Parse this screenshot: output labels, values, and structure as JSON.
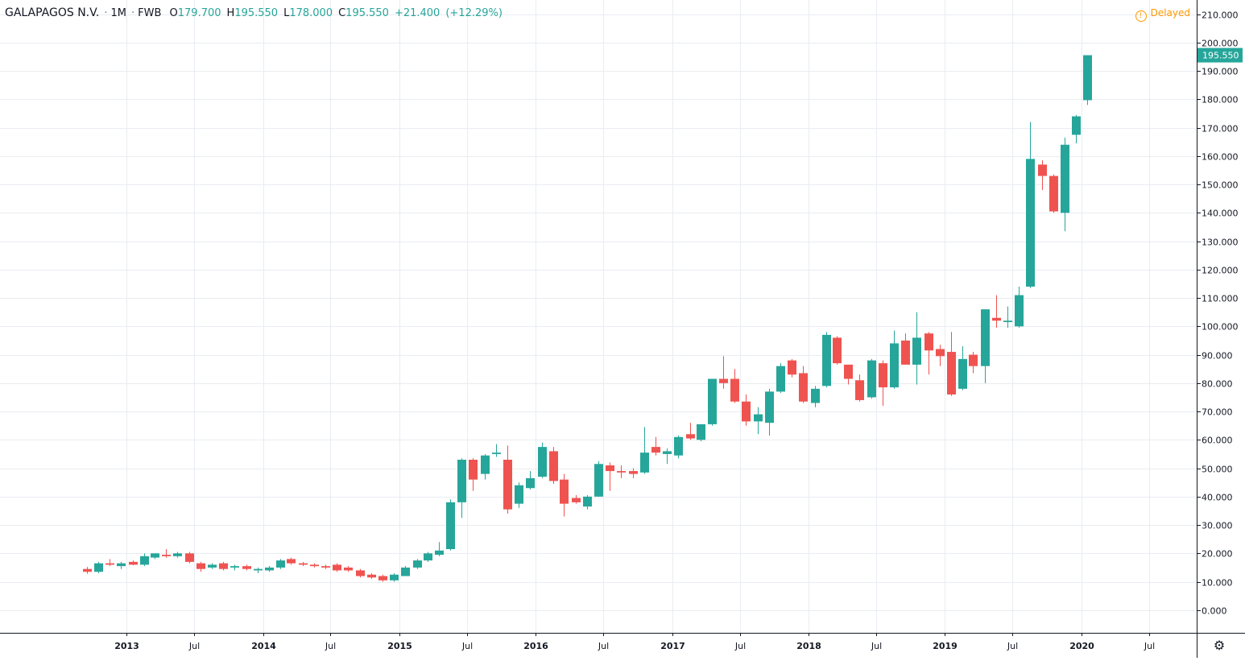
{
  "header": {
    "symbol": "GALAPAGOS N.V.",
    "interval": "1M",
    "exchange": "FWB",
    "open_label": "O",
    "open": "179.700",
    "high_label": "H",
    "high": "195.550",
    "low_label": "L",
    "low": "178.000",
    "close_label": "C",
    "close": "195.550",
    "change": "+21.400",
    "change_pct": "(+12.29%)"
  },
  "status": {
    "delayed_label": "Delayed"
  },
  "last_price_label": "195.550",
  "colors": {
    "up": "#26a69a",
    "down": "#ef5350",
    "grid": "#e9ecf1",
    "axis_text": "#131722",
    "delayed": "#ff9800"
  },
  "chart_data": {
    "type": "candlestick",
    "ylim": [
      -8,
      215
    ],
    "xlim": [
      "2012-01-28",
      "2020-11-05"
    ],
    "y_ticks": [
      "0.000",
      "10.000",
      "20.000",
      "30.000",
      "40.000",
      "50.000",
      "60.000",
      "70.000",
      "80.000",
      "90.000",
      "100.000",
      "110.000",
      "120.000",
      "130.000",
      "140.000",
      "150.000",
      "160.000",
      "170.000",
      "180.000",
      "190.000",
      "200.000",
      "210.000"
    ],
    "x_ticks": [
      {
        "label": "2013",
        "date": "2013-01"
      },
      {
        "label": "Jul",
        "date": "2013-07"
      },
      {
        "label": "2014",
        "date": "2014-01"
      },
      {
        "label": "Jul",
        "date": "2014-07"
      },
      {
        "label": "2015",
        "date": "2015-01"
      },
      {
        "label": "Jul",
        "date": "2015-07"
      },
      {
        "label": "2016",
        "date": "2016-01"
      },
      {
        "label": "Jul",
        "date": "2016-07"
      },
      {
        "label": "2017",
        "date": "2017-01"
      },
      {
        "label": "Jul",
        "date": "2017-07"
      },
      {
        "label": "2018",
        "date": "2018-01"
      },
      {
        "label": "Jul",
        "date": "2018-07"
      },
      {
        "label": "2019",
        "date": "2019-01"
      },
      {
        "label": "Jul",
        "date": "2019-07"
      },
      {
        "label": "2020",
        "date": "2020-01"
      },
      {
        "label": "Jul",
        "date": "2020-07"
      }
    ],
    "candles": [
      {
        "d": "2012-09",
        "o": 14.5,
        "h": 15.2,
        "l": 12.8,
        "c": 13.5
      },
      {
        "d": "2012-10",
        "o": 13.5,
        "h": 17.0,
        "l": 13.0,
        "c": 16.5
      },
      {
        "d": "2012-11",
        "o": 16.5,
        "h": 18.0,
        "l": 15.5,
        "c": 16.0
      },
      {
        "d": "2012-12",
        "o": 15.5,
        "h": 17.0,
        "l": 14.5,
        "c": 16.5
      },
      {
        "d": "2013-01",
        "o": 17.0,
        "h": 17.5,
        "l": 15.8,
        "c": 16.0
      },
      {
        "d": "2013-02",
        "o": 16.0,
        "h": 20.0,
        "l": 15.5,
        "c": 19.0
      },
      {
        "d": "2013-03",
        "o": 18.5,
        "h": 20.0,
        "l": 18.0,
        "c": 20.0
      },
      {
        "d": "2013-04",
        "o": 19.5,
        "h": 21.5,
        "l": 18.5,
        "c": 19.0
      },
      {
        "d": "2013-05",
        "o": 19.0,
        "h": 20.5,
        "l": 18.5,
        "c": 20.0
      },
      {
        "d": "2013-06",
        "o": 20.0,
        "h": 20.5,
        "l": 16.5,
        "c": 17.0
      },
      {
        "d": "2013-07",
        "o": 16.5,
        "h": 17.0,
        "l": 13.5,
        "c": 14.5
      },
      {
        "d": "2013-08",
        "o": 15.0,
        "h": 16.5,
        "l": 14.5,
        "c": 16.0
      },
      {
        "d": "2013-09",
        "o": 16.5,
        "h": 17.0,
        "l": 14.0,
        "c": 14.5
      },
      {
        "d": "2013-10",
        "o": 15.0,
        "h": 16.0,
        "l": 14.0,
        "c": 15.5
      },
      {
        "d": "2013-11",
        "o": 15.5,
        "h": 16.0,
        "l": 14.0,
        "c": 14.5
      },
      {
        "d": "2013-12",
        "o": 14.0,
        "h": 15.0,
        "l": 13.0,
        "c": 14.5
      },
      {
        "d": "2014-01",
        "o": 14.0,
        "h": 15.5,
        "l": 13.5,
        "c": 15.0
      },
      {
        "d": "2014-02",
        "o": 15.0,
        "h": 18.0,
        "l": 14.5,
        "c": 17.5
      },
      {
        "d": "2014-03",
        "o": 18.0,
        "h": 18.5,
        "l": 16.0,
        "c": 16.5
      },
      {
        "d": "2014-04",
        "o": 16.5,
        "h": 17.0,
        "l": 15.5,
        "c": 16.0
      },
      {
        "d": "2014-05",
        "o": 16.0,
        "h": 16.5,
        "l": 15.0,
        "c": 15.5
      },
      {
        "d": "2014-06",
        "o": 15.5,
        "h": 16.0,
        "l": 14.5,
        "c": 15.0
      },
      {
        "d": "2014-07",
        "o": 16.0,
        "h": 16.5,
        "l": 13.5,
        "c": 14.0
      },
      {
        "d": "2014-08",
        "o": 15.0,
        "h": 15.5,
        "l": 13.5,
        "c": 14.0
      },
      {
        "d": "2014-09",
        "o": 14.0,
        "h": 14.5,
        "l": 11.5,
        "c": 12.0
      },
      {
        "d": "2014-10",
        "o": 12.5,
        "h": 13.0,
        "l": 11.0,
        "c": 11.5
      },
      {
        "d": "2014-11",
        "o": 12.0,
        "h": 12.5,
        "l": 10.0,
        "c": 10.5
      },
      {
        "d": "2014-12",
        "o": 10.5,
        "h": 13.0,
        "l": 10.0,
        "c": 12.5
      },
      {
        "d": "2015-01",
        "o": 12.0,
        "h": 15.5,
        "l": 12.0,
        "c": 15.0
      },
      {
        "d": "2015-02",
        "o": 15.0,
        "h": 18.0,
        "l": 14.5,
        "c": 17.5
      },
      {
        "d": "2015-03",
        "o": 17.5,
        "h": 20.5,
        "l": 17.0,
        "c": 20.0
      },
      {
        "d": "2015-04",
        "o": 19.5,
        "h": 24.0,
        "l": 19.0,
        "c": 21.0
      },
      {
        "d": "2015-05",
        "o": 21.5,
        "h": 39.0,
        "l": 21.0,
        "c": 38.0
      },
      {
        "d": "2015-06",
        "o": 38.0,
        "h": 53.5,
        "l": 32.5,
        "c": 53.0
      },
      {
        "d": "2015-07",
        "o": 53.0,
        "h": 53.5,
        "l": 42.0,
        "c": 46.0
      },
      {
        "d": "2015-08",
        "o": 48.0,
        "h": 55.0,
        "l": 46.0,
        "c": 54.5
      },
      {
        "d": "2015-09",
        "o": 55.0,
        "h": 58.5,
        "l": 54.0,
        "c": 55.5
      },
      {
        "d": "2015-10",
        "o": 53.0,
        "h": 58.0,
        "l": 34.0,
        "c": 35.5
      },
      {
        "d": "2015-11",
        "o": 37.5,
        "h": 45.0,
        "l": 36.0,
        "c": 44.0
      },
      {
        "d": "2015-12",
        "o": 43.0,
        "h": 49.0,
        "l": 42.5,
        "c": 46.5
      },
      {
        "d": "2016-01",
        "o": 47.0,
        "h": 59.0,
        "l": 46.5,
        "c": 57.5
      },
      {
        "d": "2016-02",
        "o": 56.0,
        "h": 57.5,
        "l": 44.5,
        "c": 45.5
      },
      {
        "d": "2016-03",
        "o": 46.0,
        "h": 48.0,
        "l": 33.0,
        "c": 37.5
      },
      {
        "d": "2016-04",
        "o": 39.5,
        "h": 40.5,
        "l": 37.5,
        "c": 38.0
      },
      {
        "d": "2016-05",
        "o": 36.5,
        "h": 40.5,
        "l": 35.5,
        "c": 40.0
      },
      {
        "d": "2016-06",
        "o": 40.0,
        "h": 52.5,
        "l": 40.0,
        "c": 51.5
      },
      {
        "d": "2016-07",
        "o": 51.0,
        "h": 52.0,
        "l": 42.0,
        "c": 49.0
      },
      {
        "d": "2016-08",
        "o": 49.0,
        "h": 51.0,
        "l": 46.5,
        "c": 48.5
      },
      {
        "d": "2016-09",
        "o": 49.0,
        "h": 50.0,
        "l": 46.5,
        "c": 48.0
      },
      {
        "d": "2016-10",
        "o": 48.5,
        "h": 64.5,
        "l": 48.0,
        "c": 55.5
      },
      {
        "d": "2016-11",
        "o": 57.5,
        "h": 61.0,
        "l": 54.5,
        "c": 55.5
      },
      {
        "d": "2016-12",
        "o": 55.0,
        "h": 57.0,
        "l": 51.5,
        "c": 56.0
      },
      {
        "d": "2017-01",
        "o": 54.5,
        "h": 61.5,
        "l": 53.5,
        "c": 61.0
      },
      {
        "d": "2017-02",
        "o": 62.0,
        "h": 66.0,
        "l": 60.0,
        "c": 60.5
      },
      {
        "d": "2017-03",
        "o": 60.0,
        "h": 65.5,
        "l": 59.5,
        "c": 65.5
      },
      {
        "d": "2017-04",
        "o": 65.5,
        "h": 81.5,
        "l": 65.0,
        "c": 81.5
      },
      {
        "d": "2017-05",
        "o": 81.5,
        "h": 89.5,
        "l": 78.0,
        "c": 80.0
      },
      {
        "d": "2017-06",
        "o": 81.5,
        "h": 85.0,
        "l": 73.0,
        "c": 73.5
      },
      {
        "d": "2017-07",
        "o": 73.5,
        "h": 76.0,
        "l": 65.0,
        "c": 66.5
      },
      {
        "d": "2017-08",
        "o": 66.5,
        "h": 71.5,
        "l": 62.0,
        "c": 69.0
      },
      {
        "d": "2017-09",
        "o": 66.0,
        "h": 78.0,
        "l": 61.5,
        "c": 77.0
      },
      {
        "d": "2017-10",
        "o": 77.0,
        "h": 87.0,
        "l": 76.5,
        "c": 86.0
      },
      {
        "d": "2017-11",
        "o": 88.0,
        "h": 88.5,
        "l": 82.0,
        "c": 83.0
      },
      {
        "d": "2017-12",
        "o": 83.5,
        "h": 86.0,
        "l": 73.0,
        "c": 73.5
      },
      {
        "d": "2018-01",
        "o": 73.0,
        "h": 79.0,
        "l": 71.5,
        "c": 78.0
      },
      {
        "d": "2018-02",
        "o": 79.0,
        "h": 98.0,
        "l": 78.5,
        "c": 97.0
      },
      {
        "d": "2018-03",
        "o": 96.0,
        "h": 96.5,
        "l": 86.5,
        "c": 87.0
      },
      {
        "d": "2018-04",
        "o": 86.5,
        "h": 86.5,
        "l": 79.5,
        "c": 81.5
      },
      {
        "d": "2018-05",
        "o": 81.0,
        "h": 83.0,
        "l": 73.5,
        "c": 74.0
      },
      {
        "d": "2018-06",
        "o": 75.0,
        "h": 88.5,
        "l": 74.5,
        "c": 88.0
      },
      {
        "d": "2018-07",
        "o": 87.0,
        "h": 88.0,
        "l": 72.0,
        "c": 78.5
      },
      {
        "d": "2018-08",
        "o": 78.5,
        "h": 98.5,
        "l": 78.0,
        "c": 94.0
      },
      {
        "d": "2018-09",
        "o": 95.0,
        "h": 97.5,
        "l": 86.5,
        "c": 86.5
      },
      {
        "d": "2018-10",
        "o": 86.5,
        "h": 105.0,
        "l": 79.5,
        "c": 96.0
      },
      {
        "d": "2018-11",
        "o": 97.5,
        "h": 98.0,
        "l": 83.0,
        "c": 91.5
      },
      {
        "d": "2018-12",
        "o": 92.0,
        "h": 93.5,
        "l": 86.0,
        "c": 89.5
      },
      {
        "d": "2019-01",
        "o": 91.0,
        "h": 98.0,
        "l": 75.5,
        "c": 76.0
      },
      {
        "d": "2019-02",
        "o": 78.0,
        "h": 93.0,
        "l": 77.5,
        "c": 88.5
      },
      {
        "d": "2019-03",
        "o": 90.0,
        "h": 91.0,
        "l": 83.5,
        "c": 86.0
      },
      {
        "d": "2019-04",
        "o": 86.0,
        "h": 106.0,
        "l": 80.0,
        "c": 106.0
      },
      {
        "d": "2019-05",
        "o": 103.0,
        "h": 111.0,
        "l": 99.5,
        "c": 102.0
      },
      {
        "d": "2019-06",
        "o": 101.5,
        "h": 107.0,
        "l": 99.5,
        "c": 102.0
      },
      {
        "d": "2019-07",
        "o": 100.0,
        "h": 114.0,
        "l": 99.5,
        "c": 111.0
      },
      {
        "d": "2019-08",
        "o": 114.0,
        "h": 172.0,
        "l": 113.5,
        "c": 159.0
      },
      {
        "d": "2019-09",
        "o": 157.0,
        "h": 158.5,
        "l": 148.0,
        "c": 153.0
      },
      {
        "d": "2019-10",
        "o": 153.0,
        "h": 153.5,
        "l": 140.0,
        "c": 140.5
      },
      {
        "d": "2019-11",
        "o": 140.0,
        "h": 166.5,
        "l": 133.5,
        "c": 164.0
      },
      {
        "d": "2019-12",
        "o": 167.5,
        "h": 174.5,
        "l": 164.5,
        "c": 174.0
      },
      {
        "d": "2020-01",
        "o": 179.7,
        "h": 195.55,
        "l": 178.0,
        "c": 195.55
      }
    ]
  }
}
